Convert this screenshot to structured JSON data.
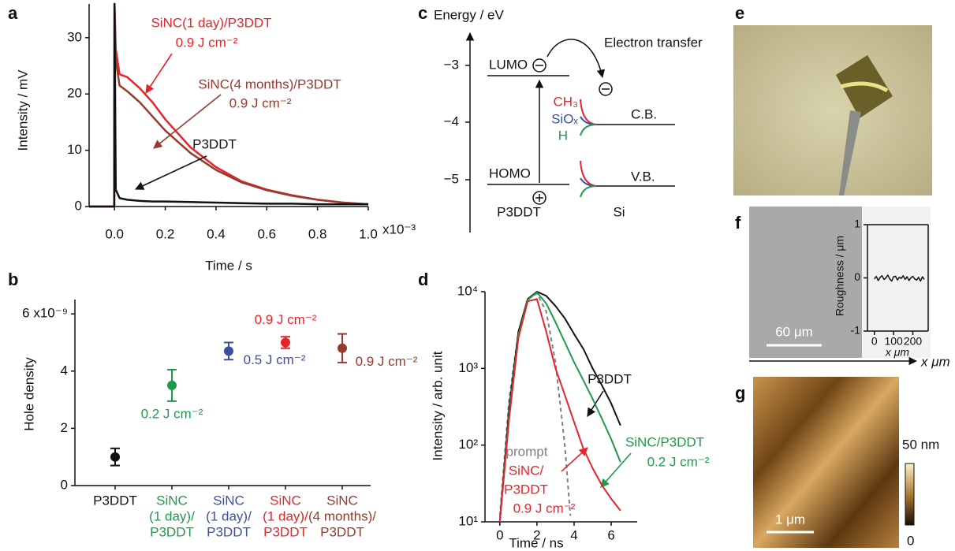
{
  "panel_labels": [
    "a",
    "b",
    "c",
    "d",
    "e",
    "f",
    "g"
  ],
  "chart_data": [
    {
      "type": "line",
      "x_label": "Time / s",
      "y_label": "Intensity / mV",
      "xlim": [
        -0.1,
        1.0
      ],
      "xticks": [
        {
          "value": 0,
          "label": "0.0"
        },
        0.2,
        0.4,
        0.6,
        0.8,
        {
          "value": 1.0,
          "label": "1.0"
        }
      ],
      "x_multiplier": "x10⁻³",
      "ylim": [
        0,
        36
      ],
      "yticks": [
        0,
        10,
        20,
        30
      ],
      "series": [
        {
          "label": [
            "SiNC(1 day)/P3DDT",
            "0.9 J cm⁻²"
          ],
          "color": "#e5252b",
          "x": [
            -0.1,
            -0.001,
            0,
            0.005,
            0.02,
            0.05,
            0.1,
            0.15,
            0.2,
            0.3,
            0.4,
            0.5,
            0.6,
            0.7,
            0.8,
            0.9,
            1.0
          ],
          "values": [
            0,
            0,
            36,
            28,
            23.5,
            23,
            21,
            18.5,
            15.5,
            10.5,
            7,
            4.5,
            3,
            2,
            1.2,
            0.7,
            0.4
          ]
        },
        {
          "label": [
            "SiNC(4 months)/P3DDT",
            "0.9 J cm⁻²"
          ],
          "color": "#953a2c",
          "x": [
            -0.1,
            -0.001,
            0,
            0.005,
            0.02,
            0.05,
            0.1,
            0.15,
            0.2,
            0.3,
            0.4,
            0.5,
            0.6,
            0.7,
            0.8,
            0.9,
            1.0
          ],
          "values": [
            0,
            0,
            36,
            26,
            21.5,
            20.5,
            18.5,
            16,
            13.5,
            9.5,
            6.5,
            4.3,
            2.9,
            1.9,
            1.2,
            0.7,
            0.4
          ]
        },
        {
          "label": [
            "P3DDT"
          ],
          "color": "#111111",
          "x": [
            -0.1,
            -0.001,
            0,
            0.005,
            0.02,
            0.05,
            0.1,
            0.15,
            0.2,
            0.3,
            0.4,
            0.5,
            0.6,
            0.7,
            0.8,
            0.9,
            1.0
          ],
          "values": [
            0,
            0,
            36,
            3,
            1.5,
            1.2,
            1.0,
            0.9,
            0.9,
            0.8,
            0.7,
            0.6,
            0.5,
            0.5,
            0.4,
            0.4,
            0.4
          ]
        }
      ]
    },
    {
      "type": "scatter",
      "y_label": "Hole density",
      "categories": [
        [
          "P3DDT"
        ],
        [
          "SiNC",
          "(1 day)/",
          "P3DDT"
        ],
        [
          "SiNC",
          "(1 day)/",
          "P3DDT"
        ],
        [
          "SiNC",
          "(1 day)/",
          "P3DDT"
        ],
        [
          "SiNC",
          "(4 months)/",
          "P3DDT"
        ]
      ],
      "values": [
        1.0,
        3.5,
        4.7,
        5.0,
        4.8
      ],
      "errors": [
        0.3,
        0.55,
        0.3,
        0.2,
        0.5
      ],
      "colors": [
        "#111111",
        "#1f9a4b",
        "#3b50a3",
        "#e5252b",
        "#953a2c"
      ],
      "notes": [
        null,
        "0.2 J cm⁻²",
        "0.5 J cm⁻²",
        "0.9 J cm⁻²",
        "0.9 J cm⁻²"
      ],
      "ylim": [
        0,
        6.5
      ],
      "yticks": [
        0,
        2,
        4,
        {
          "value": 6,
          "label": "6 x10⁻⁹"
        }
      ]
    },
    {
      "type": "line",
      "x_label": "Time / ns",
      "y_label": "Intensity / arb. unit",
      "log_y": true,
      "xlim": [
        -0.8,
        7.4
      ],
      "xticks": [
        0,
        2,
        4,
        6
      ],
      "ylim": [
        10,
        10000
      ],
      "yticks": [
        {
          "value": 10,
          "label": "10¹"
        },
        {
          "value": 100,
          "label": "10²"
        },
        {
          "value": 1000,
          "label": "10³"
        },
        {
          "value": 10000,
          "label": "10⁴"
        }
      ],
      "series": [
        {
          "label": [
            "prompt"
          ],
          "color": "#808080",
          "dashed": true,
          "x": [
            0,
            0.5,
            1,
            1.5,
            2,
            2.5,
            3,
            3.5,
            3.8
          ],
          "values": [
            12,
            400,
            3000,
            8000,
            9500,
            5500,
            1200,
            100,
            12
          ]
        },
        {
          "label": [
            "P3DDT"
          ],
          "color": "#111111",
          "x": [
            0,
            0.5,
            1,
            1.5,
            2,
            2.5,
            3,
            3.5,
            4,
            4.5,
            5,
            5.5,
            6,
            6.5
          ],
          "values": [
            10,
            300,
            3000,
            8000,
            10000,
            8800,
            6500,
            4500,
            2800,
            1800,
            1000,
            600,
            350,
            180
          ]
        },
        {
          "label": [
            "SiNC/P3DDT",
            "0.2 J cm⁻²"
          ],
          "color": "#1f9a4b",
          "x": [
            0,
            0.5,
            1,
            1.5,
            2,
            2.5,
            3,
            3.5,
            4,
            4.5,
            5,
            5.5,
            6,
            6.5
          ],
          "values": [
            10,
            250,
            2700,
            7800,
            9800,
            7000,
            4000,
            2200,
            1200,
            700,
            400,
            220,
            120,
            60
          ]
        },
        {
          "label": [
            "SiNC/",
            "P3DDT",
            "0.9 J cm⁻²"
          ],
          "color": "#e5252b",
          "x": [
            0,
            0.5,
            1,
            1.5,
            2,
            2.5,
            3,
            3.5,
            4,
            4.5,
            5,
            5.5,
            6,
            6.5
          ],
          "values": [
            10,
            220,
            2500,
            7500,
            8000,
            3000,
            1000,
            450,
            200,
            90,
            50,
            30,
            20,
            14
          ]
        }
      ]
    },
    {
      "type": "line",
      "x_label": "x μm",
      "y_label": "Roughness / μm",
      "xlim": [
        -36,
        280
      ],
      "xticks": [
        0,
        100,
        200
      ],
      "ylim": [
        -1,
        1
      ],
      "yticks": [
        -1,
        0,
        1
      ],
      "series": [
        {
          "color": "#111111",
          "x": [
            0,
            10,
            20,
            30,
            40,
            50,
            60,
            70,
            80,
            90,
            100,
            110,
            120,
            130,
            140,
            150,
            160,
            170,
            180,
            190,
            200,
            210,
            220,
            230,
            240,
            250,
            260
          ],
          "values": [
            -0.02,
            0.03,
            -0.05,
            0.01,
            0.04,
            -0.03,
            0.0,
            0.05,
            -0.02,
            -0.06,
            0.02,
            0.03,
            -0.04,
            0.01,
            -0.01,
            0.04,
            -0.03,
            0.02,
            -0.05,
            0.0,
            0.03,
            -0.02,
            -0.04,
            0.01,
            -0.06,
            0.02,
            -0.03
          ]
        }
      ]
    }
  ],
  "diagram": {
    "energy_label": "Energy / eV",
    "levels": [
      "−3",
      "−4",
      "−5"
    ],
    "lumo": "LUMO",
    "homo": "HOMO",
    "electron_transfer": "Electron transfer",
    "ch3": "CH₃",
    "siox": "SiOₓ",
    "h": "H",
    "cb": "C.B.",
    "vb": "V.B.",
    "p3ddt": "P3DDT",
    "si": "Si"
  },
  "images": {
    "f_scale": "60 μm",
    "f_axis_label": "x μm",
    "g_scale": "1 μm",
    "g_colorbar_max": "50 nm",
    "g_colorbar_min": "0"
  }
}
